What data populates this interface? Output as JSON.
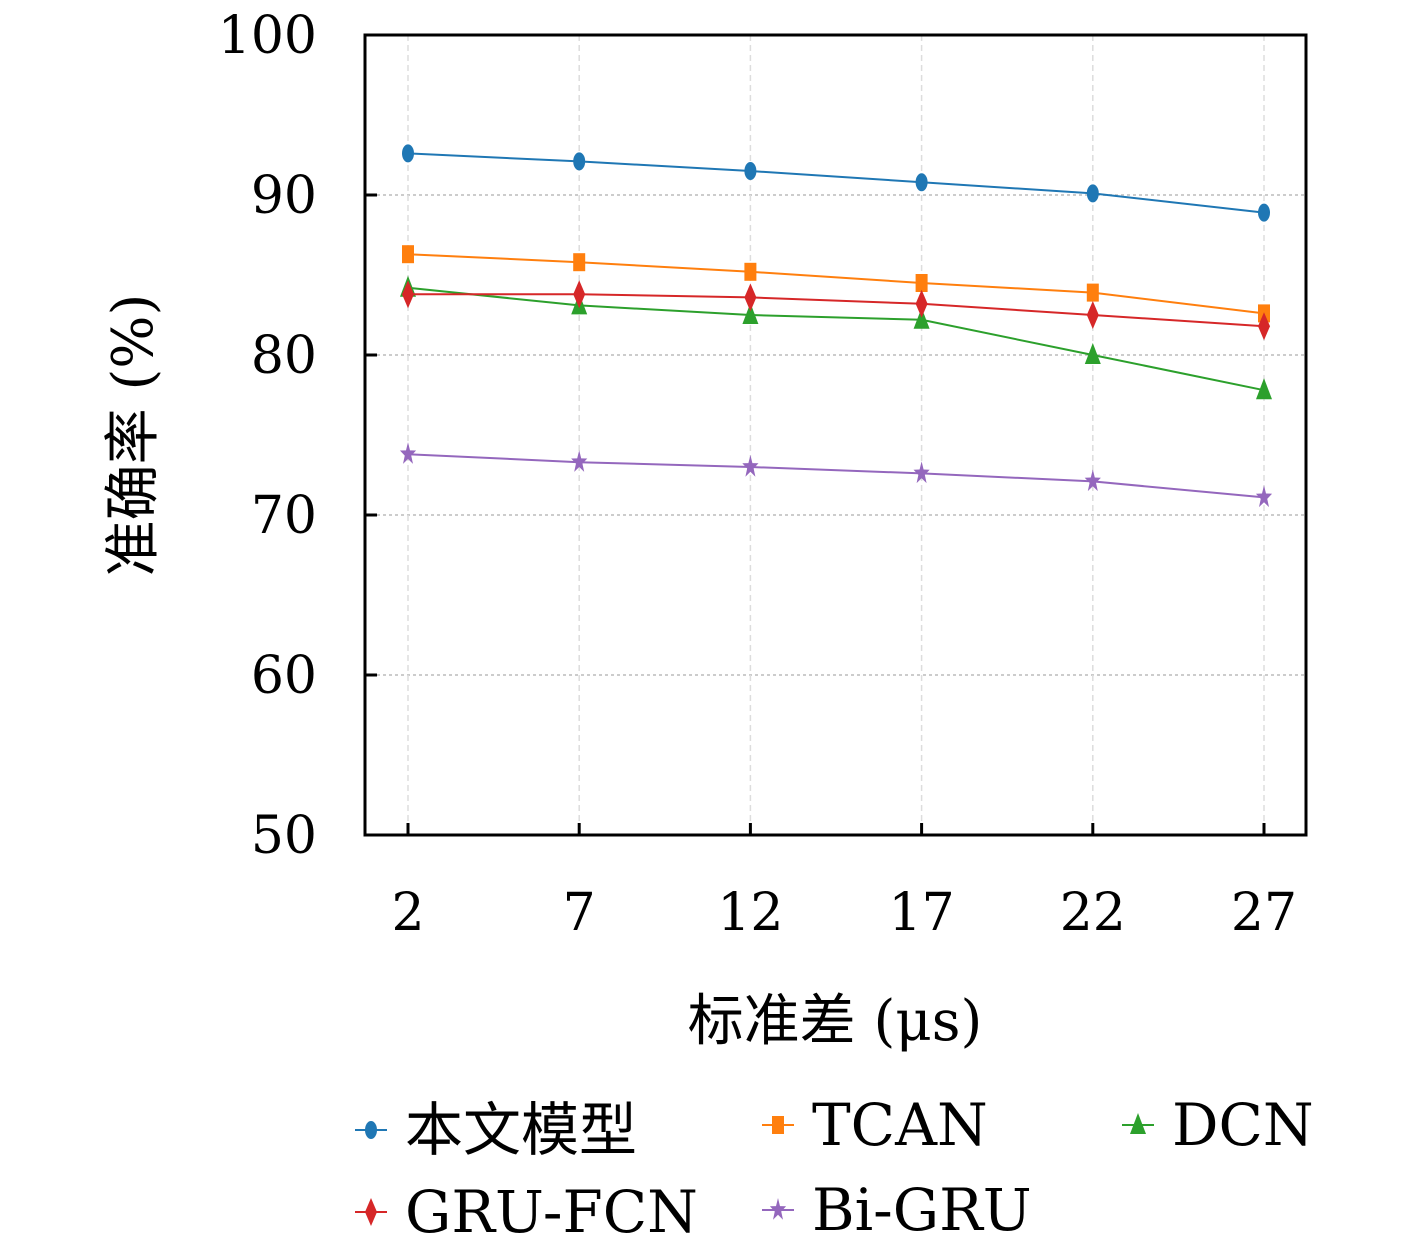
{
  "chart_data": {
    "type": "line",
    "title": "",
    "xlabel": "标准差 (μs)",
    "ylabel": "准确率 (%)",
    "x": [
      2,
      7,
      12,
      17,
      22,
      27
    ],
    "xticks": [
      "2",
      "7",
      "12",
      "17",
      "22",
      "27"
    ],
    "yticks": [
      "50",
      "60",
      "70",
      "80",
      "90",
      "100"
    ],
    "ylim": [
      50,
      100
    ],
    "grid": true,
    "legend_position": "bottom",
    "series": [
      {
        "name": "本文模型",
        "color": "#1f77b4",
        "marker": "circle",
        "values": [
          92.6,
          92.1,
          91.5,
          90.8,
          90.1,
          88.9
        ]
      },
      {
        "name": "TCAN",
        "color": "#ff7f0e",
        "marker": "square",
        "values": [
          86.3,
          85.8,
          85.2,
          84.5,
          83.9,
          82.6
        ]
      },
      {
        "name": "DCN",
        "color": "#2ca02c",
        "marker": "triangle",
        "values": [
          84.2,
          83.1,
          82.5,
          82.2,
          80.0,
          77.8
        ]
      },
      {
        "name": "GRU-FCN",
        "color": "#d62728",
        "marker": "diamond",
        "values": [
          83.8,
          83.8,
          83.6,
          83.2,
          82.5,
          81.8
        ]
      },
      {
        "name": "Bi-GRU",
        "color": "#9467bd",
        "marker": "star",
        "values": [
          73.8,
          73.3,
          73.0,
          72.6,
          72.1,
          71.1
        ]
      }
    ]
  }
}
